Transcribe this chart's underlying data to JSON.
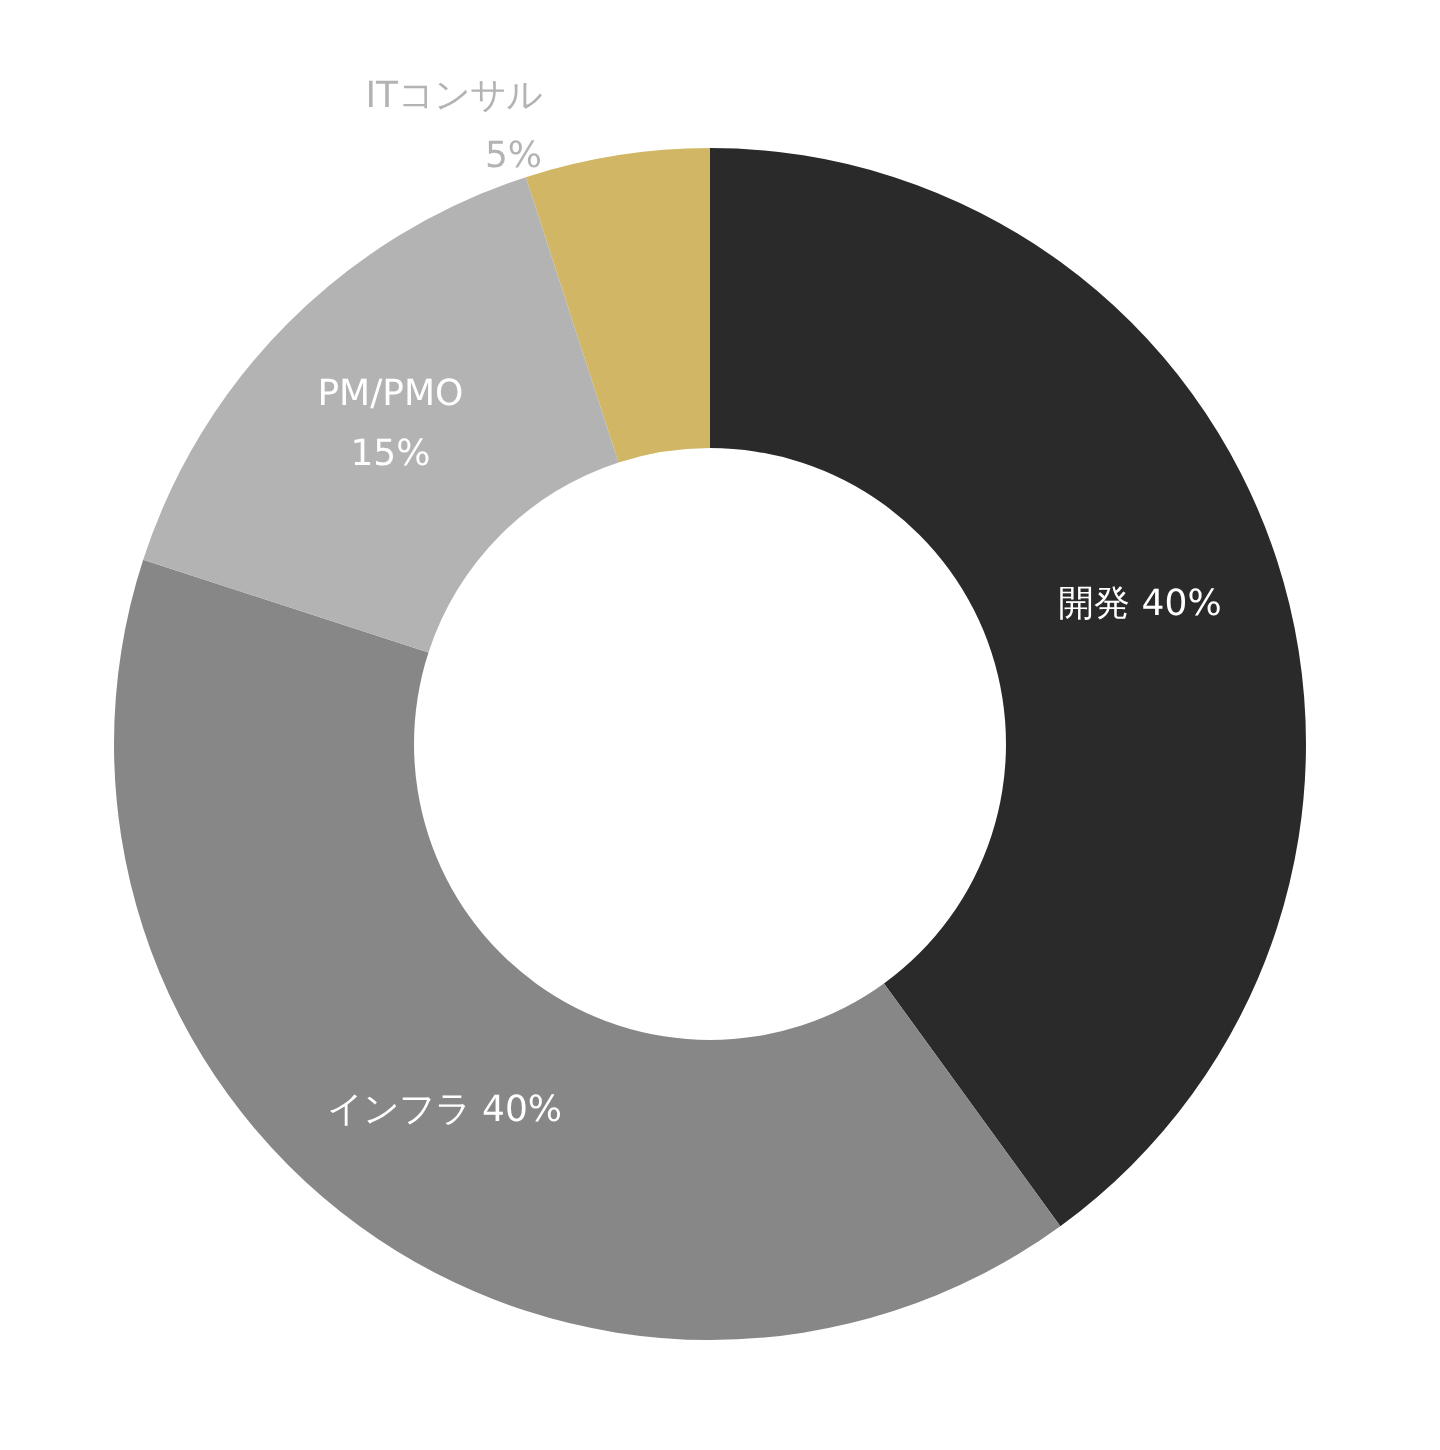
{
  "chart_data": {
    "type": "donut",
    "categories": [
      "開発",
      "インフラ",
      "PM/PMO",
      "ITコンサル"
    ],
    "values": [
      40,
      40,
      15,
      5
    ],
    "colors": [
      "#2a2a2a",
      "#878787",
      "#b3b3b3",
      "#d1b665"
    ],
    "value_labels": [
      "40%",
      "40%",
      "15%",
      "5%"
    ]
  }
}
